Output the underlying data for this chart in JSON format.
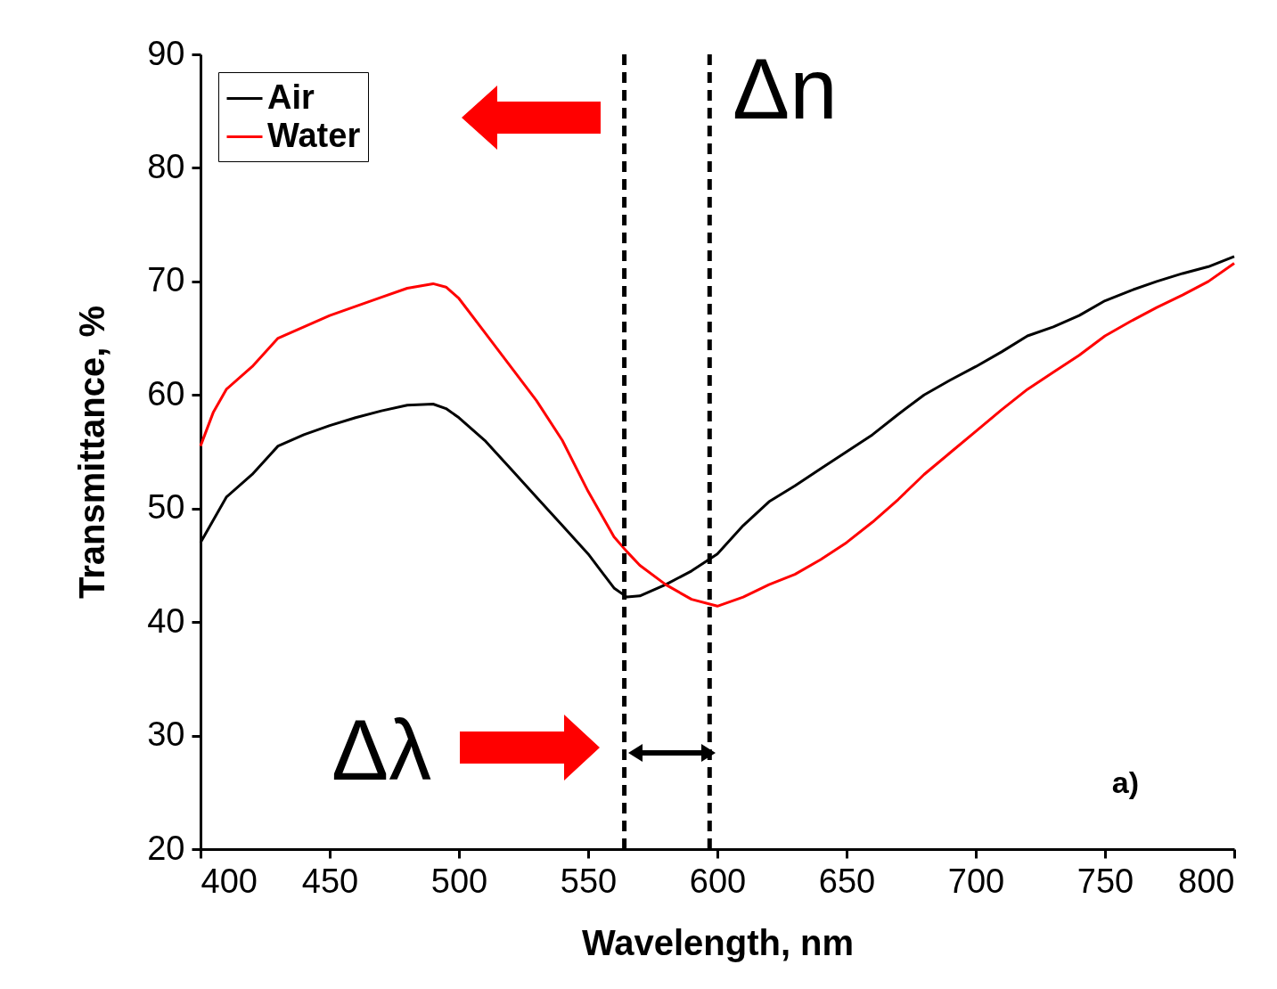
{
  "chart_data": {
    "type": "line",
    "xlabel": "Wavelength, nm",
    "ylabel": "Transmittance, %",
    "x": [
      400,
      405,
      410,
      420,
      430,
      440,
      450,
      460,
      470,
      480,
      490,
      495,
      500,
      510,
      520,
      530,
      540,
      550,
      555,
      560,
      565,
      570,
      580,
      590,
      600,
      610,
      620,
      630,
      640,
      650,
      660,
      670,
      680,
      690,
      700,
      710,
      720,
      730,
      740,
      750,
      760,
      770,
      780,
      790,
      800
    ],
    "series": [
      {
        "name": "Air",
        "color": "#000000",
        "values": [
          47,
          49,
          51,
          53,
          55.5,
          56.5,
          57.3,
          58,
          58.6,
          59.1,
          59.2,
          58.8,
          58,
          56,
          53.5,
          51,
          48.5,
          46,
          44.5,
          43,
          42.2,
          42.3,
          43.3,
          44.5,
          46,
          48.5,
          50.6,
          52,
          53.5,
          55,
          56.5,
          58.3,
          60,
          61.3,
          62.5,
          63.8,
          65.2,
          66,
          67,
          68.3,
          69.2,
          70,
          70.7,
          71.3,
          72.2
        ]
      },
      {
        "name": "Water",
        "color": "#ff0000",
        "values": [
          55.5,
          58.5,
          60.5,
          62.5,
          65,
          66,
          67,
          67.8,
          68.6,
          69.4,
          69.8,
          69.5,
          68.5,
          65.5,
          62.5,
          59.5,
          56,
          51.5,
          49.5,
          47.5,
          46.2,
          45,
          43.3,
          42,
          41.4,
          42.2,
          43.3,
          44.2,
          45.5,
          47,
          48.8,
          50.8,
          53,
          54.9,
          56.8,
          58.7,
          60.5,
          62,
          63.5,
          65.2,
          66.5,
          67.7,
          68.8,
          70,
          71.6
        ]
      }
    ],
    "xlim": [
      400,
      800
    ],
    "xticks": [
      400,
      450,
      500,
      550,
      600,
      650,
      700,
      750,
      800
    ],
    "ylim": [
      20,
      90
    ],
    "yticks": [
      20,
      30,
      40,
      50,
      60,
      70,
      80,
      90
    ],
    "ref_lines": [
      {
        "axis": "x",
        "value": 564,
        "color": "#000000",
        "line_style": "dashed"
      },
      {
        "axis": "x",
        "value": 597,
        "color": "#000000",
        "line_style": "dashed"
      }
    ],
    "annotations": [
      "Δn",
      "Δλ",
      "a)"
    ],
    "legend": "top left",
    "grid": false,
    "line_style": "solid"
  }
}
